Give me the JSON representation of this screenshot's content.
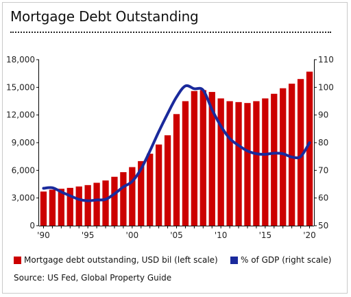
{
  "title": "Mortgage Debt Outstanding",
  "source": "Source: US Fed, Global Property Guide",
  "colors": {
    "bar": "#cc0000",
    "line": "#1a2a9c"
  },
  "chart_data": {
    "type": "bar+line",
    "x_tick_labels": [
      "'90",
      "'95",
      "'00",
      "'05",
      "'10",
      "'15",
      "'20"
    ],
    "x": [
      1990,
      1991,
      1992,
      1993,
      1994,
      1995,
      1996,
      1997,
      1998,
      1999,
      2000,
      2001,
      2002,
      2003,
      2004,
      2005,
      2006,
      2007,
      2008,
      2009,
      2010,
      2011,
      2012,
      2013,
      2014,
      2015,
      2016,
      2017,
      2018,
      2019,
      2020
    ],
    "left_axis": {
      "ticks": [
        "0",
        "3,000",
        "6,000",
        "9,000",
        "12,000",
        "15,000",
        "18,000"
      ],
      "ylim": [
        0,
        18000
      ]
    },
    "right_axis": {
      "ticks": [
        "50",
        "60",
        "70",
        "80",
        "90",
        "100",
        "110"
      ],
      "ylim": [
        50,
        110
      ]
    },
    "series": [
      {
        "name": "Mortgage debt outstanding, USD bil (left scale)",
        "type": "bar",
        "axis": "left",
        "values": [
          3700,
          3900,
          4000,
          4100,
          4250,
          4400,
          4650,
          4900,
          5300,
          5800,
          6350,
          7000,
          7800,
          8800,
          9800,
          12100,
          13500,
          14600,
          14700,
          14500,
          13800,
          13500,
          13400,
          13300,
          13500,
          13800,
          14300,
          14900,
          15400,
          15900,
          16700
        ]
      },
      {
        "name": "% of GDP (right scale)",
        "type": "line",
        "axis": "right",
        "values": [
          63.5,
          63.7,
          62.2,
          60.8,
          59.5,
          59.0,
          59.3,
          59.5,
          61.5,
          64.0,
          66.0,
          70.5,
          77.0,
          84.0,
          90.5,
          96.5,
          100.5,
          99.5,
          99.0,
          92.0,
          86.0,
          81.5,
          79.0,
          77.0,
          76.0,
          75.8,
          76.2,
          76.0,
          74.8,
          75.0,
          80.0
        ]
      }
    ]
  }
}
